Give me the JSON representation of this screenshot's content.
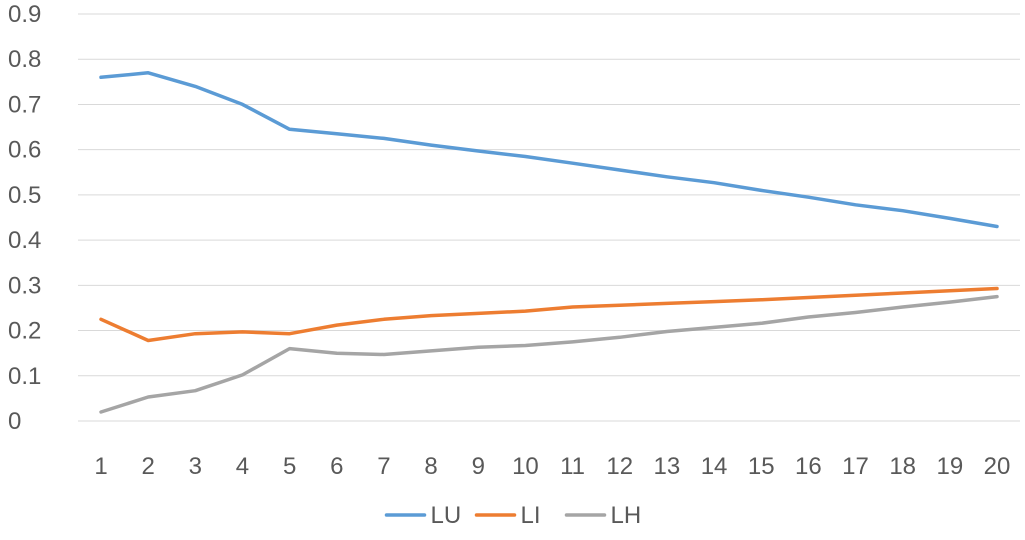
{
  "chart_data": {
    "type": "line",
    "title": "",
    "xlabel": "",
    "ylabel": "",
    "x": [
      1,
      2,
      3,
      4,
      5,
      6,
      7,
      8,
      9,
      10,
      11,
      12,
      13,
      14,
      15,
      16,
      17,
      18,
      19,
      20
    ],
    "x_tick_labels": [
      "1",
      "2",
      "3",
      "4",
      "5",
      "6",
      "7",
      "8",
      "9",
      "10",
      "11",
      "12",
      "13",
      "14",
      "15",
      "16",
      "17",
      "18",
      "19",
      "20"
    ],
    "ylim": [
      0,
      0.9
    ],
    "y_ticks": [
      0,
      0.1,
      0.2,
      0.3,
      0.4,
      0.5,
      0.6,
      0.7,
      0.8,
      0.9
    ],
    "y_tick_labels": [
      "0",
      "0.1",
      "0.2",
      "0.3",
      "0.4",
      "0.5",
      "0.6",
      "0.7",
      "0.8",
      "0.9"
    ],
    "grid": "horizontal",
    "legend_position": "bottom",
    "series": [
      {
        "name": "LU",
        "color": "#5b9bd5",
        "values": [
          0.76,
          0.77,
          0.74,
          0.7,
          0.645,
          0.635,
          0.625,
          0.61,
          0.597,
          0.585,
          0.57,
          0.555,
          0.54,
          0.527,
          0.51,
          0.495,
          0.478,
          0.465,
          0.448,
          0.43
        ]
      },
      {
        "name": "LI",
        "color": "#ed7d31",
        "values": [
          0.225,
          0.178,
          0.193,
          0.197,
          0.193,
          0.212,
          0.225,
          0.233,
          0.238,
          0.243,
          0.252,
          0.256,
          0.26,
          0.264,
          0.268,
          0.273,
          0.278,
          0.283,
          0.288,
          0.293
        ]
      },
      {
        "name": "LH",
        "color": "#a5a5a5",
        "values": [
          0.02,
          0.053,
          0.067,
          0.102,
          0.16,
          0.15,
          0.147,
          0.155,
          0.163,
          0.167,
          0.175,
          0.185,
          0.198,
          0.207,
          0.216,
          0.23,
          0.24,
          0.252,
          0.263,
          0.275
        ]
      }
    ]
  }
}
